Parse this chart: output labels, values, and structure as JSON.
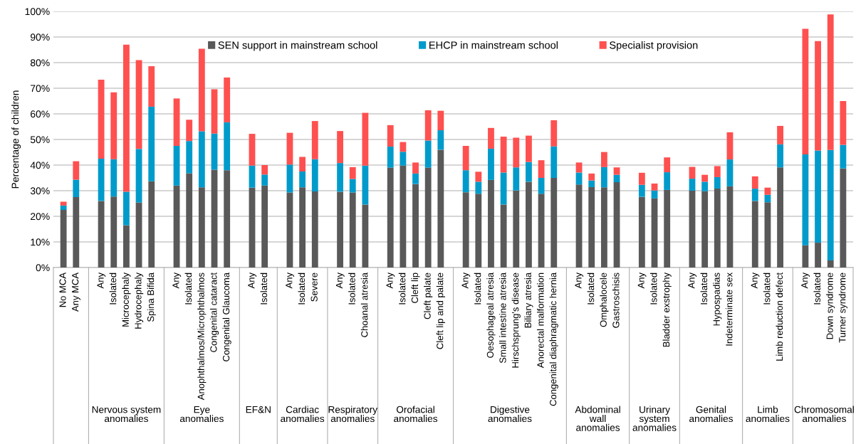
{
  "chart_data": {
    "type": "bar",
    "stacked": true,
    "ylabel": "Percentage of children",
    "categories": [
      "No MCA",
      "Any MCA",
      null,
      "Any",
      "Isolated",
      "Microcephaly",
      "Hydrocephaly",
      "Spina Bifida",
      null,
      "Any",
      "Isolated",
      "Anophthalmos/Microphthalmos",
      "Congenital cataract",
      "Congenital Glaucoma",
      null,
      "Any",
      "Isolated",
      null,
      "Any",
      "Isolated",
      "Severe",
      null,
      "Any",
      "Isolated",
      "Choanal atresia",
      null,
      "Any",
      "Isolated",
      "Cleft lip",
      "Cleft palate",
      "Cleft lip and palate",
      null,
      "Any",
      "Isolated",
      "Oesophageal atresia",
      "Small intestine atresia",
      "Hirschsprung's disease",
      "Biliary atresia",
      "Anorectal malformation",
      "Congenital diaphragmatic hernia",
      null,
      "Any",
      "Isolated",
      "Omphalocele",
      "Gastroschisis",
      null,
      "Any",
      "Isolated",
      "Bladder exstrophy",
      null,
      "Any",
      "Isolated",
      "Hypospadias",
      "Indeterminate sex",
      null,
      "Any",
      "Isolated",
      "Limb reduction defect",
      null,
      "Any",
      "Isolated",
      "Down syndrome",
      "Turner syndrome"
    ],
    "series": [
      {
        "name": "SEN support in mainstream school",
        "color": "#595959",
        "values": [
          22.5,
          27.5,
          null,
          26,
          27.7,
          16.5,
          25.4,
          33.7,
          null,
          32,
          36.8,
          31.3,
          38.2,
          38,
          null,
          31.2,
          32,
          null,
          29.3,
          31.3,
          29.7,
          null,
          29.6,
          29.3,
          24.6,
          null,
          39,
          39.8,
          32.6,
          39,
          46,
          null,
          29.4,
          28.8,
          34.2,
          24.6,
          30.1,
          33.5,
          28.8,
          35,
          null,
          32.4,
          31.4,
          31.3,
          33.3,
          null,
          27.6,
          27,
          30.3,
          null,
          30,
          29.8,
          30.8,
          31.7,
          null,
          26,
          25.5,
          39.1,
          null,
          8.7,
          9.7,
          2.8,
          38.7
        ]
      },
      {
        "name": "EHCP in mainstream school",
        "color": "#009bcb",
        "values": [
          1.7,
          6.8,
          null,
          16.5,
          14.6,
          13.1,
          20.9,
          29.1,
          null,
          15.5,
          12.6,
          21.9,
          14.1,
          18.7,
          null,
          8.6,
          4.3,
          null,
          10.9,
          6.2,
          12.6,
          null,
          11.2,
          5.3,
          15.2,
          null,
          8.2,
          5.4,
          4.1,
          10.6,
          7.6,
          null,
          8.6,
          4.7,
          12.2,
          12.5,
          9,
          7.7,
          6.2,
          12.3,
          null,
          4.7,
          2.6,
          7.9,
          2.9,
          null,
          4.7,
          3.1,
          6.9,
          null,
          4.7,
          3.7,
          4.5,
          10.5,
          null,
          4.8,
          2.9,
          9,
          null,
          35.5,
          36,
          43.1,
          9.2
        ]
      },
      {
        "name": "Specialist provision",
        "color": "#ff5050",
        "values": [
          1.5,
          7.2,
          null,
          30.8,
          26.1,
          57.4,
          34.7,
          15.8,
          null,
          18.5,
          8.3,
          32.2,
          17.3,
          17.5,
          null,
          12.4,
          3.7,
          null,
          12.4,
          5.7,
          14.9,
          null,
          12.5,
          4.6,
          20.6,
          null,
          8.4,
          3.8,
          4.3,
          11.8,
          7.6,
          null,
          9.5,
          3.9,
          8.1,
          14,
          11.6,
          10.3,
          6.9,
          10.2,
          null,
          3.9,
          2.7,
          5.9,
          2.9,
          null,
          4.7,
          2.7,
          5.8,
          null,
          4.6,
          2.7,
          4.3,
          10.6,
          null,
          4.8,
          2.8,
          7.2,
          null,
          49,
          42.7,
          52.9,
          17.1
        ]
      }
    ],
    "ylim": [
      0,
      100
    ],
    "yticks": [
      {
        "value": 0,
        "label": "0%"
      },
      {
        "value": 10,
        "label": "10%"
      },
      {
        "value": 20,
        "label": "20%"
      },
      {
        "value": 30,
        "label": "30%"
      },
      {
        "value": 40,
        "label": "40%"
      },
      {
        "value": 50,
        "label": "50%"
      },
      {
        "value": 60,
        "label": "60%"
      },
      {
        "value": 70,
        "label": "70%"
      },
      {
        "value": 80,
        "label": "80%"
      },
      {
        "value": 90,
        "label": "90%"
      },
      {
        "value": 100,
        "label": "100%"
      }
    ],
    "grid": "y",
    "legend": "top",
    "annotations": [
      "Nervous system\nanomalies",
      "Eye\nanomalies",
      "EF&N",
      "Cardiac\nanomalies",
      "Respiratory\nanomalies",
      "Orofacial\nanomalies",
      "Digestive\nanomalies",
      "Abdominal\nwall\nanomalies",
      "Urinary\nsystem\nanomalies",
      "Genital\nanomalies",
      "Limb\nanomalies",
      "Chromosomal\nanomalies"
    ]
  }
}
